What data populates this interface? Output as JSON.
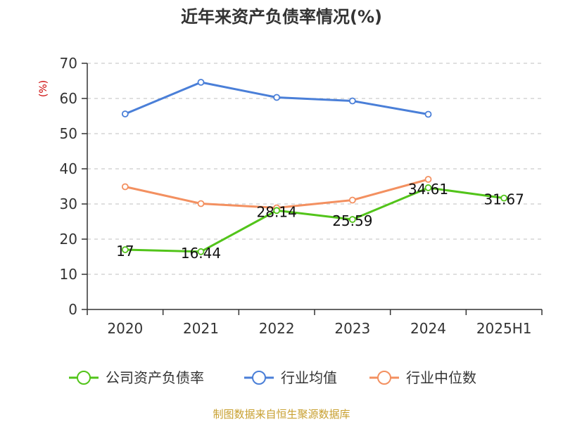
{
  "chart_data": {
    "type": "line",
    "title": "近年来资产负债率情况(%)",
    "ylabel": "(%)",
    "xlabel": "",
    "categories": [
      "2020",
      "2021",
      "2022",
      "2023",
      "2024",
      "2025H1"
    ],
    "ylim": [
      0,
      70
    ],
    "yticks": [
      0,
      10,
      20,
      30,
      40,
      50,
      60,
      70
    ],
    "grid": true,
    "legend_position": "bottom",
    "series": [
      {
        "name": "公司资产负债率",
        "color": "#52c41a",
        "values": [
          17,
          16.44,
          28.14,
          25.59,
          34.61,
          31.67
        ],
        "labels": [
          "17",
          "16.44",
          "28.14",
          "25.59",
          "34.61",
          "31.67"
        ]
      },
      {
        "name": "行业均值",
        "color": "#4a7fd8",
        "values": [
          55.6,
          64.6,
          60.3,
          59.3,
          55.5,
          null
        ]
      },
      {
        "name": "行业中位数",
        "color": "#f39060",
        "values": [
          34.9,
          30.1,
          28.9,
          31.1,
          37.0,
          null
        ]
      }
    ]
  },
  "source_text": "制图数据来自恒生聚源数据库",
  "colors": {
    "title": "#333333",
    "ylabel": "#cc0000",
    "source": "#c8a030",
    "grid": "#cccccc",
    "axis": "#333333"
  }
}
